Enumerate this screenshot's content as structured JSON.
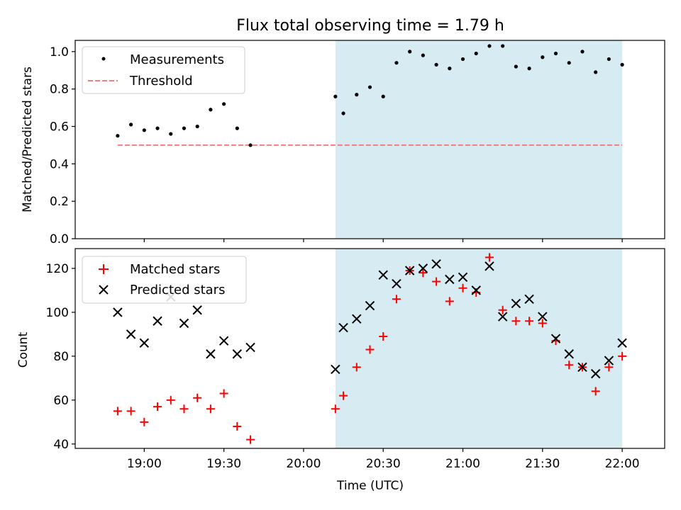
{
  "figure": {
    "title": "Flux total observing time = 1.79 h",
    "xlabel": "Time (UTC)",
    "x_ticks": [
      "19:00",
      "19:30",
      "20:00",
      "20:30",
      "21:00",
      "21:30",
      "22:00"
    ],
    "shaded_region": {
      "start": "20:12",
      "end": "22:00",
      "color": "#add8e6"
    }
  },
  "chart_data": [
    {
      "type": "scatter",
      "title": "Flux total observing time = 1.79 h",
      "xlabel": "",
      "ylabel": "Matched/Predicted stars",
      "ylim": [
        0,
        1.06
      ],
      "yticks": [
        "0.0",
        "0.2",
        "0.4",
        "0.6",
        "0.8",
        "1.0"
      ],
      "legend_position": "top-left",
      "threshold": {
        "name": "Threshold",
        "value": 0.5,
        "from": "18:50",
        "to": "22:00",
        "color": "#f08080"
      },
      "series": [
        {
          "name": "Measurements",
          "color": "#000000",
          "marker": "dot",
          "points": [
            [
              "18:50",
              0.55
            ],
            [
              "18:55",
              0.61
            ],
            [
              "19:00",
              0.58
            ],
            [
              "19:05",
              0.59
            ],
            [
              "19:10",
              0.56
            ],
            [
              "19:15",
              0.59
            ],
            [
              "19:20",
              0.6
            ],
            [
              "19:25",
              0.69
            ],
            [
              "19:30",
              0.72
            ],
            [
              "19:35",
              0.59
            ],
            [
              "19:40",
              0.5
            ],
            [
              "20:12",
              0.76
            ],
            [
              "20:15",
              0.67
            ],
            [
              "20:20",
              0.77
            ],
            [
              "20:25",
              0.81
            ],
            [
              "20:30",
              0.76
            ],
            [
              "20:35",
              0.94
            ],
            [
              "20:40",
              1.0
            ],
            [
              "20:45",
              0.98
            ],
            [
              "20:50",
              0.93
            ],
            [
              "20:55",
              0.91
            ],
            [
              "21:00",
              0.96
            ],
            [
              "21:05",
              0.99
            ],
            [
              "21:10",
              1.03
            ],
            [
              "21:15",
              1.03
            ],
            [
              "21:20",
              0.92
            ],
            [
              "21:25",
              0.91
            ],
            [
              "21:30",
              0.97
            ],
            [
              "21:35",
              0.99
            ],
            [
              "21:40",
              0.94
            ],
            [
              "21:45",
              1.0
            ],
            [
              "21:50",
              0.89
            ],
            [
              "21:55",
              0.96
            ],
            [
              "22:00",
              0.93
            ]
          ]
        }
      ]
    },
    {
      "type": "scatter",
      "xlabel": "Time (UTC)",
      "ylabel": "Count",
      "ylim": [
        38,
        129
      ],
      "yticks": [
        "40",
        "60",
        "80",
        "100",
        "120"
      ],
      "legend_position": "top-left",
      "series": [
        {
          "name": "Matched stars",
          "color": "#ff0000",
          "marker": "plus",
          "points": [
            [
              "18:50",
              55
            ],
            [
              "18:55",
              55
            ],
            [
              "19:00",
              50
            ],
            [
              "19:05",
              57
            ],
            [
              "19:10",
              60
            ],
            [
              "19:15",
              56
            ],
            [
              "19:20",
              61
            ],
            [
              "19:25",
              56
            ],
            [
              "19:30",
              63
            ],
            [
              "19:35",
              48
            ],
            [
              "19:40",
              42
            ],
            [
              "20:12",
              56
            ],
            [
              "20:15",
              62
            ],
            [
              "20:20",
              75
            ],
            [
              "20:25",
              83
            ],
            [
              "20:30",
              89
            ],
            [
              "20:35",
              106
            ],
            [
              "20:40",
              119
            ],
            [
              "20:45",
              118
            ],
            [
              "20:50",
              114
            ],
            [
              "20:55",
              105
            ],
            [
              "21:00",
              111
            ],
            [
              "21:05",
              109
            ],
            [
              "21:10",
              125
            ],
            [
              "21:15",
              101
            ],
            [
              "21:20",
              96
            ],
            [
              "21:25",
              96
            ],
            [
              "21:30",
              95
            ],
            [
              "21:35",
              87
            ],
            [
              "21:40",
              76
            ],
            [
              "21:45",
              75
            ],
            [
              "21:50",
              64
            ],
            [
              "21:55",
              75
            ],
            [
              "22:00",
              80
            ]
          ]
        },
        {
          "name": "Predicted stars",
          "color": "#000000",
          "marker": "x",
          "points": [
            [
              "18:50",
              100
            ],
            [
              "18:55",
              90
            ],
            [
              "19:00",
              86
            ],
            [
              "19:05",
              96
            ],
            [
              "19:10",
              107
            ],
            [
              "19:15",
              95
            ],
            [
              "19:20",
              101
            ],
            [
              "19:25",
              81
            ],
            [
              "19:30",
              87
            ],
            [
              "19:35",
              81
            ],
            [
              "19:40",
              84
            ],
            [
              "20:12",
              74
            ],
            [
              "20:15",
              93
            ],
            [
              "20:20",
              97
            ],
            [
              "20:25",
              103
            ],
            [
              "20:30",
              117
            ],
            [
              "20:35",
              113
            ],
            [
              "20:40",
              119
            ],
            [
              "20:45",
              120
            ],
            [
              "20:50",
              122
            ],
            [
              "20:55",
              115
            ],
            [
              "21:00",
              116
            ],
            [
              "21:05",
              110
            ],
            [
              "21:10",
              121
            ],
            [
              "21:15",
              98
            ],
            [
              "21:20",
              104
            ],
            [
              "21:25",
              106
            ],
            [
              "21:30",
              98
            ],
            [
              "21:35",
              88
            ],
            [
              "21:40",
              81
            ],
            [
              "21:45",
              75
            ],
            [
              "21:50",
              72
            ],
            [
              "21:55",
              78
            ],
            [
              "22:00",
              86
            ]
          ]
        }
      ]
    }
  ]
}
